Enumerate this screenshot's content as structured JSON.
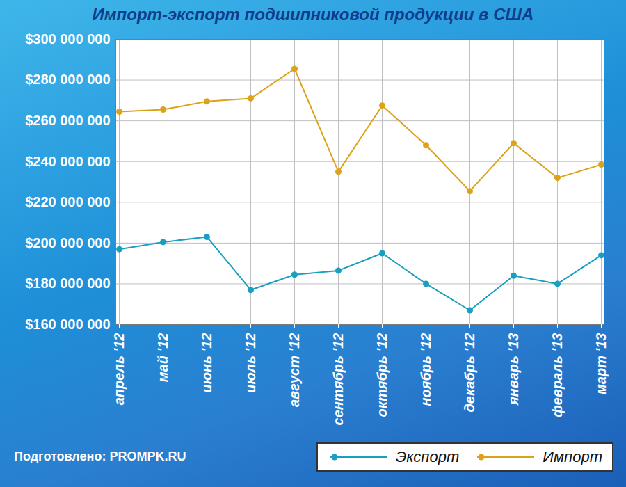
{
  "chart_data": {
    "type": "line",
    "title": "Импорт-экспорт подшипниковой продукции в США",
    "source": "Подготовлено: PROMPK.RU",
    "categories": [
      "апрель '12",
      "май '12",
      "июнь '12",
      "июль '12",
      "август '12",
      "сентябрь '12",
      "октябрь '12",
      "ноябрь '12",
      "декабрь '12",
      "январь '13",
      "февраль '13",
      "март '13"
    ],
    "series": [
      {
        "name": "Экспорт",
        "color": "#1b9fc0",
        "marker": "circle",
        "values": [
          197000000,
          200500000,
          203000000,
          177000000,
          184500000,
          186500000,
          195000000,
          180000000,
          167000000,
          184000000,
          180000000,
          194000000
        ]
      },
      {
        "name": "Импорт",
        "color": "#dca21a",
        "marker": "circle",
        "values": [
          264500000,
          265500000,
          269500000,
          271000000,
          285500000,
          235000000,
          267500000,
          248000000,
          225500000,
          249000000,
          232000000,
          238500000
        ]
      }
    ],
    "ylim": [
      160000000,
      300000000
    ],
    "yticks": [
      {
        "value": 160000000,
        "label": "$160 000 000"
      },
      {
        "value": 180000000,
        "label": "$180 000 000"
      },
      {
        "value": 200000000,
        "label": "$200 000 000"
      },
      {
        "value": 220000000,
        "label": "$220 000 000"
      },
      {
        "value": 240000000,
        "label": "$240 000 000"
      },
      {
        "value": 260000000,
        "label": "$260 000 000"
      },
      {
        "value": 280000000,
        "label": "$280 000 000"
      },
      {
        "value": 300000000,
        "label": "$300 000 000"
      }
    ],
    "grid": true,
    "legend": "bottom-right"
  }
}
